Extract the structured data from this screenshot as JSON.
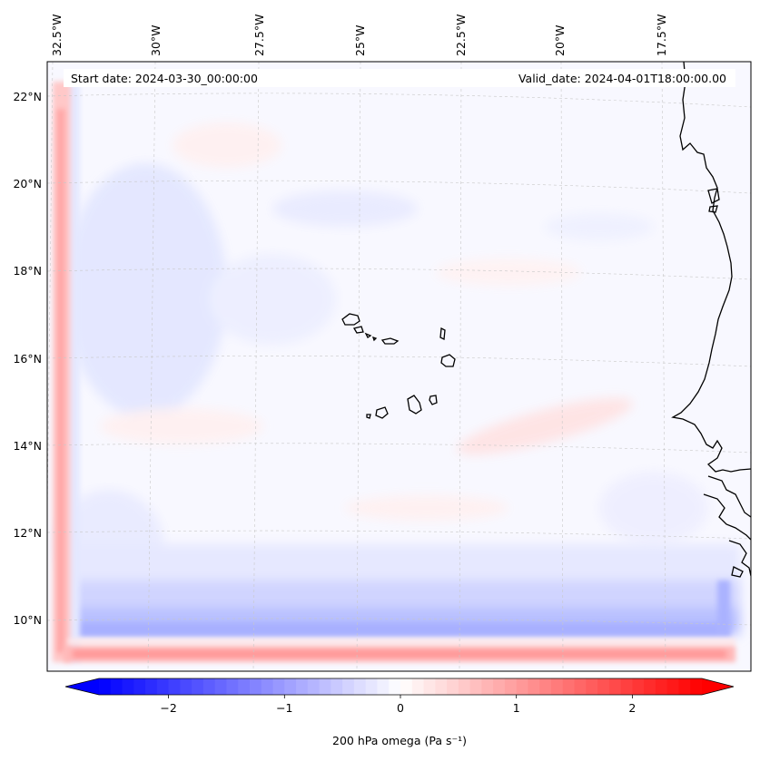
{
  "header": {
    "start_date": "Start date: 2024-03-30_00:00:00",
    "valid_date": "Valid_date: 2024-04-01T18:00:00.00"
  },
  "map": {
    "lon_labels": [
      "32.5°W",
      "30°W",
      "27.5°W",
      "25°W",
      "22.5°W",
      "20°W",
      "17.5°W"
    ],
    "lat_labels": [
      "22°N",
      "20°N",
      "18°N",
      "16°N",
      "14°N",
      "12°N",
      "10°N"
    ]
  },
  "colorbar": {
    "label": "200 hPa omega (Pa s⁻¹)",
    "ticks": [
      "−2",
      "−1",
      "0",
      "1",
      "2"
    ],
    "tick_values": [
      -2,
      -1,
      0,
      1,
      2
    ],
    "range": [
      -2.6,
      2.6
    ],
    "colormap": "bwr",
    "color_min": "#0000ff",
    "color_mid": "#ffffff",
    "color_max": "#ff0000"
  }
}
